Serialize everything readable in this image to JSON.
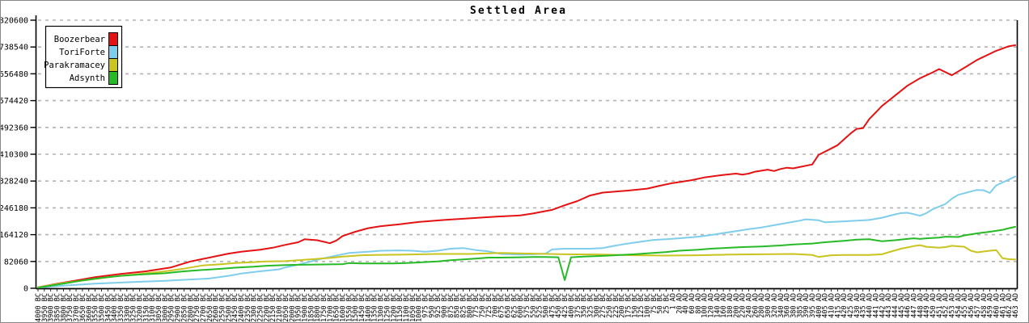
{
  "chart_data": {
    "type": "line",
    "title": "Settled Area",
    "xlabel": "",
    "ylabel": "",
    "ylim": [
      0,
      820600
    ],
    "grid": "horizontal-dashed",
    "legend_position": "top-left",
    "axis_color": "#000000",
    "grid_color": "#b3b3b3",
    "y_ticks": [
      0,
      82060,
      164120,
      246180,
      328240,
      410300,
      492360,
      574420,
      656480,
      738540,
      820600
    ],
    "x_labels": [
      "4000 BC",
      "3950 BC",
      "3900 BC",
      "3850 BC",
      "3800 BC",
      "3750 BC",
      "3700 BC",
      "3650 BC",
      "3600 BC",
      "3550 BC",
      "3500 BC",
      "3450 BC",
      "3400 BC",
      "3350 BC",
      "3300 BC",
      "3250 BC",
      "3200 BC",
      "3150 BC",
      "3100 BC",
      "3050 BC",
      "3000 BC",
      "2950 BC",
      "2900 BC",
      "2850 BC",
      "2800 BC",
      "2750 BC",
      "2700 BC",
      "2650 BC",
      "2600 BC",
      "2550 BC",
      "2500 BC",
      "2450 BC",
      "2400 BC",
      "2350 BC",
      "2300 BC",
      "2250 BC",
      "2200 BC",
      "2150 BC",
      "2100 BC",
      "2050 BC",
      "2000 BC",
      "1950 BC",
      "1900 BC",
      "1850 BC",
      "1800 BC",
      "1750 BC",
      "1700 BC",
      "1650 BC",
      "1600 BC",
      "1550 BC",
      "1500 BC",
      "1450 BC",
      "1400 BC",
      "1350 BC",
      "1300 BC",
      "1250 BC",
      "1200 BC",
      "1150 BC",
      "1100 BC",
      "1050 BC",
      "1000 BC",
      "975 BC",
      "950 BC",
      "925 BC",
      "900 BC",
      "875 BC",
      "850 BC",
      "825 BC",
      "800 BC",
      "775 BC",
      "750 BC",
      "725 BC",
      "700 BC",
      "675 BC",
      "650 BC",
      "625 BC",
      "600 BC",
      "575 BC",
      "550 BC",
      "525 BC",
      "500 BC",
      "475 BC",
      "450 BC",
      "425 BC",
      "400 BC",
      "375 BC",
      "350 BC",
      "325 BC",
      "300 BC",
      "275 BC",
      "250 BC",
      "225 BC",
      "200 BC",
      "175 BC",
      "150 BC",
      "125 BC",
      "100 BC",
      "75 BC",
      "50 BC",
      "25 BC",
      "1 AD",
      "20 AD",
      "40 AD",
      "60 AD",
      "80 AD",
      "100 AD",
      "120 AD",
      "140 AD",
      "160 AD",
      "180 AD",
      "200 AD",
      "220 AD",
      "240 AD",
      "260 AD",
      "280 AD",
      "300 AD",
      "320 AD",
      "340 AD",
      "360 AD",
      "380 AD",
      "385 AD",
      "390 AD",
      "395 AD",
      "400 AD",
      "405 AD",
      "410 AD",
      "415 AD",
      "420 AD",
      "425 AD",
      "430 AD",
      "435 AD",
      "440 AD",
      "441 AD",
      "442 AD",
      "443 AD",
      "444 AD",
      "445 AD",
      "446 AD",
      "447 AD",
      "448 AD",
      "449 AD",
      "450 AD",
      "451 AD",
      "452 AD",
      "453 AD",
      "454 AD",
      "455 AD",
      "456 AD",
      "457 AD",
      "458 AD",
      "459 AD",
      "460 AD",
      "461 AD",
      "462 AD",
      "463 AD"
    ],
    "series": [
      {
        "name": "Boozerbear",
        "color": "#e41212",
        "points": [
          [
            0,
            3000
          ],
          [
            3,
            14000
          ],
          [
            6,
            24000
          ],
          [
            9,
            34000
          ],
          [
            13,
            44000
          ],
          [
            17,
            52000
          ],
          [
            21,
            64000
          ],
          [
            24,
            82000
          ],
          [
            26,
            90000
          ],
          [
            28,
            98000
          ],
          [
            30,
            106000
          ],
          [
            32,
            112000
          ],
          [
            35,
            118000
          ],
          [
            37,
            124000
          ],
          [
            39,
            133000
          ],
          [
            41,
            141000
          ],
          [
            42,
            150000
          ],
          [
            44,
            147000
          ],
          [
            46,
            138000
          ],
          [
            47,
            146000
          ],
          [
            48,
            160000
          ],
          [
            50,
            173000
          ],
          [
            52,
            184000
          ],
          [
            54,
            190000
          ],
          [
            57,
            196000
          ],
          [
            60,
            203000
          ],
          [
            64,
            209000
          ],
          [
            68,
            214000
          ],
          [
            72,
            219000
          ],
          [
            76,
            223000
          ],
          [
            78,
            229000
          ],
          [
            81,
            240000
          ],
          [
            83,
            254000
          ],
          [
            85,
            267000
          ],
          [
            87,
            284000
          ],
          [
            89,
            293000
          ],
          [
            91,
            296000
          ],
          [
            93,
            299000
          ],
          [
            96,
            305000
          ],
          [
            98,
            314000
          ],
          [
            100,
            322000
          ],
          [
            103,
            331000
          ],
          [
            105,
            339000
          ],
          [
            108,
            347000
          ],
          [
            110,
            351000
          ],
          [
            111,
            348000
          ],
          [
            112,
            351000
          ],
          [
            113,
            357000
          ],
          [
            115,
            363000
          ],
          [
            116,
            359000
          ],
          [
            117,
            365000
          ],
          [
            118,
            369000
          ],
          [
            119,
            367000
          ],
          [
            120,
            371000
          ],
          [
            122,
            379000
          ],
          [
            123,
            408000
          ],
          [
            126,
            438000
          ],
          [
            128,
            473000
          ],
          [
            129,
            488000
          ],
          [
            130,
            490000
          ],
          [
            131,
            518000
          ],
          [
            133,
            558000
          ],
          [
            135,
            589000
          ],
          [
            137,
            620000
          ],
          [
            139,
            643000
          ],
          [
            141,
            661000
          ],
          [
            142,
            671000
          ],
          [
            144,
            652000
          ],
          [
            146,
            675000
          ],
          [
            148,
            699000
          ],
          [
            151,
            727000
          ],
          [
            153,
            741000
          ],
          [
            154,
            744000
          ]
        ]
      },
      {
        "name": "ToriForte",
        "color": "#7fcdec",
        "points": [
          [
            0,
            2000
          ],
          [
            4,
            8000
          ],
          [
            9,
            14000
          ],
          [
            15,
            19000
          ],
          [
            20,
            23000
          ],
          [
            23,
            26000
          ],
          [
            27,
            30000
          ],
          [
            30,
            38000
          ],
          [
            32,
            45000
          ],
          [
            35,
            52000
          ],
          [
            38,
            58000
          ],
          [
            39,
            64000
          ],
          [
            41,
            72000
          ],
          [
            43,
            82000
          ],
          [
            45,
            92000
          ],
          [
            47,
            100000
          ],
          [
            49,
            108000
          ],
          [
            52,
            112000
          ],
          [
            54,
            115000
          ],
          [
            57,
            116000
          ],
          [
            59,
            115000
          ],
          [
            61,
            112000
          ],
          [
            63,
            115000
          ],
          [
            65,
            121000
          ],
          [
            67,
            123000
          ],
          [
            69,
            117000
          ],
          [
            71,
            113000
          ],
          [
            73,
            105000
          ],
          [
            76,
            103000
          ],
          [
            78,
            104000
          ],
          [
            80,
            106000
          ],
          [
            81,
            119000
          ],
          [
            83,
            121000
          ],
          [
            85,
            121000
          ],
          [
            87,
            121000
          ],
          [
            89,
            123000
          ],
          [
            90,
            127000
          ],
          [
            92,
            134000
          ],
          [
            94,
            140000
          ],
          [
            96,
            145000
          ],
          [
            97,
            148000
          ],
          [
            99,
            150000
          ],
          [
            101,
            153000
          ],
          [
            104,
            158000
          ],
          [
            106,
            163000
          ],
          [
            108,
            169000
          ],
          [
            110,
            175000
          ],
          [
            112,
            181000
          ],
          [
            114,
            186000
          ],
          [
            116,
            193000
          ],
          [
            118,
            200000
          ],
          [
            120,
            207000
          ],
          [
            121,
            211000
          ],
          [
            123,
            208000
          ],
          [
            124,
            202000
          ],
          [
            126,
            204000
          ],
          [
            127,
            205000
          ],
          [
            129,
            207000
          ],
          [
            131,
            209000
          ],
          [
            133,
            216000
          ],
          [
            135,
            226000
          ],
          [
            136,
            230000
          ],
          [
            137,
            231000
          ],
          [
            138,
            227000
          ],
          [
            139,
            222000
          ],
          [
            140,
            230000
          ],
          [
            141,
            242000
          ],
          [
            143,
            258000
          ],
          [
            144,
            274000
          ],
          [
            145,
            286000
          ],
          [
            147,
            296000
          ],
          [
            148,
            301000
          ],
          [
            149,
            300000
          ],
          [
            150,
            292000
          ],
          [
            151,
            315000
          ],
          [
            153,
            333000
          ],
          [
            154,
            342000
          ]
        ]
      },
      {
        "name": "Parakramacey",
        "color": "#c9c41f",
        "points": [
          [
            0,
            3000
          ],
          [
            4,
            16000
          ],
          [
            8,
            26000
          ],
          [
            12,
            36000
          ],
          [
            16,
            44000
          ],
          [
            20,
            52000
          ],
          [
            23,
            60000
          ],
          [
            26,
            70000
          ],
          [
            29,
            74000
          ],
          [
            31,
            77000
          ],
          [
            34,
            80000
          ],
          [
            36,
            82000
          ],
          [
            39,
            83000
          ],
          [
            41,
            86000
          ],
          [
            44,
            90000
          ],
          [
            46,
            93000
          ],
          [
            48,
            97000
          ],
          [
            51,
            101000
          ],
          [
            53,
            102000
          ],
          [
            58,
            103000
          ],
          [
            63,
            105000
          ],
          [
            68,
            105000
          ],
          [
            73,
            108000
          ],
          [
            78,
            106000
          ],
          [
            83,
            104000
          ],
          [
            89,
            103000
          ],
          [
            94,
            101000
          ],
          [
            99,
            100000
          ],
          [
            104,
            101000
          ],
          [
            109,
            103000
          ],
          [
            114,
            104000
          ],
          [
            119,
            105000
          ],
          [
            122,
            102000
          ],
          [
            123,
            96000
          ],
          [
            125,
            101000
          ],
          [
            127,
            102000
          ],
          [
            131,
            102000
          ],
          [
            133,
            104000
          ],
          [
            134,
            110000
          ],
          [
            136,
            121000
          ],
          [
            138,
            129000
          ],
          [
            139,
            132000
          ],
          [
            140,
            127000
          ],
          [
            142,
            124000
          ],
          [
            143,
            126000
          ],
          [
            144,
            130000
          ],
          [
            146,
            127000
          ],
          [
            147,
            115000
          ],
          [
            148,
            110000
          ],
          [
            150,
            115000
          ],
          [
            151,
            117000
          ],
          [
            152,
            92000
          ],
          [
            153,
            89000
          ],
          [
            154,
            88000
          ]
        ]
      },
      {
        "name": "Adsynth",
        "color": "#27ba27",
        "points": [
          [
            0,
            2000
          ],
          [
            4,
            14000
          ],
          [
            7,
            24000
          ],
          [
            10,
            32000
          ],
          [
            13,
            38000
          ],
          [
            16,
            42000
          ],
          [
            20,
            46000
          ],
          [
            23,
            52000
          ],
          [
            26,
            56000
          ],
          [
            29,
            60000
          ],
          [
            31,
            63000
          ],
          [
            34,
            66000
          ],
          [
            36,
            69000
          ],
          [
            39,
            71000
          ],
          [
            41,
            72000
          ],
          [
            45,
            73000
          ],
          [
            48,
            74000
          ],
          [
            49,
            77000
          ],
          [
            51,
            76000
          ],
          [
            53,
            76000
          ],
          [
            56,
            76000
          ],
          [
            58,
            77000
          ],
          [
            60,
            79000
          ],
          [
            63,
            82000
          ],
          [
            65,
            86000
          ],
          [
            69,
            91000
          ],
          [
            71,
            94000
          ],
          [
            73,
            94000
          ],
          [
            76,
            95000
          ],
          [
            78,
            96000
          ],
          [
            80,
            96000
          ],
          [
            82,
            95000
          ],
          [
            83,
            25000
          ],
          [
            84,
            95000
          ],
          [
            86,
            97000
          ],
          [
            89,
            99000
          ],
          [
            91,
            101000
          ],
          [
            94,
            104000
          ],
          [
            96,
            107000
          ],
          [
            99,
            111000
          ],
          [
            101,
            115000
          ],
          [
            104,
            118000
          ],
          [
            106,
            121000
          ],
          [
            109,
            124000
          ],
          [
            111,
            126000
          ],
          [
            114,
            128000
          ],
          [
            117,
            131000
          ],
          [
            119,
            134000
          ],
          [
            122,
            137000
          ],
          [
            124,
            141000
          ],
          [
            127,
            145000
          ],
          [
            129,
            149000
          ],
          [
            131,
            150000
          ],
          [
            132,
            147000
          ],
          [
            133,
            144000
          ],
          [
            135,
            147000
          ],
          [
            137,
            151000
          ],
          [
            138,
            153000
          ],
          [
            139,
            151000
          ],
          [
            140,
            153000
          ],
          [
            142,
            155000
          ],
          [
            143,
            158000
          ],
          [
            145,
            157000
          ],
          [
            146,
            162000
          ],
          [
            148,
            168000
          ],
          [
            150,
            173000
          ],
          [
            152,
            179000
          ],
          [
            153,
            184000
          ],
          [
            154,
            188000
          ]
        ]
      }
    ]
  }
}
